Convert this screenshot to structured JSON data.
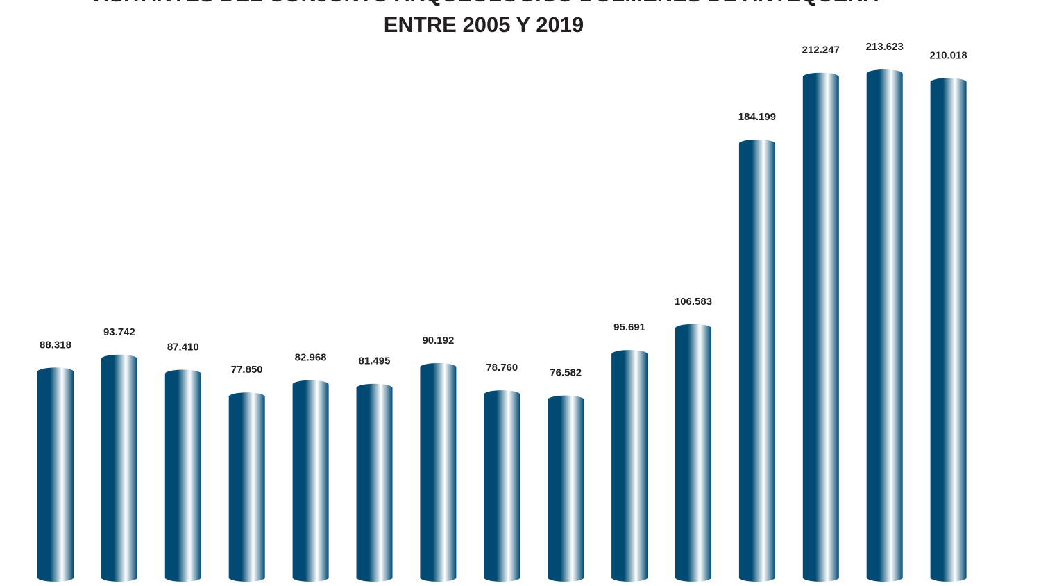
{
  "chart_data": {
    "type": "bar",
    "title": [
      "VISITANTES DEL CONJUNTO ARQUEOLÓGICO DÓLMENES DE ANTEQUERA",
      "ENTRE 2005 Y 2019"
    ],
    "values": [
      88318,
      93742,
      87410,
      77850,
      82968,
      81495,
      90192,
      78760,
      76582,
      95691,
      106583,
      184199,
      212247,
      213623,
      210018
    ],
    "value_labels": [
      "88.318",
      "93.742",
      "87.410",
      "77.850",
      "82.968",
      "81.495",
      "90.192",
      "78.760",
      "76.582",
      "95.691",
      "106.583",
      "184.199",
      "212.247",
      "213.623",
      "210.018"
    ],
    "color": "#004a73"
  }
}
